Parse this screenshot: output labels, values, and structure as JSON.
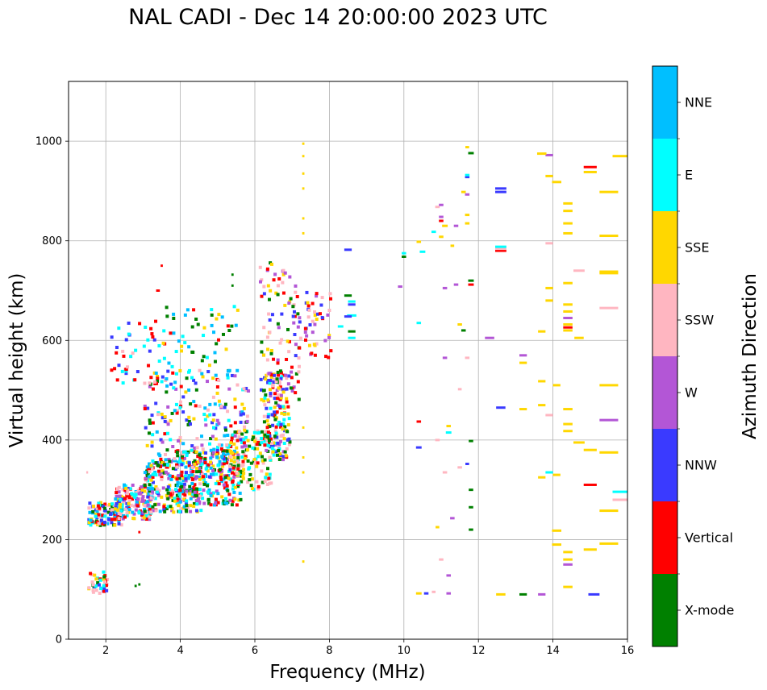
{
  "chart_data": {
    "type": "scatter",
    "title": "NAL CADI - Dec 14 20:00:00 2023 UTC",
    "xlabel": "Frequency (MHz)",
    "ylabel": "Virtual height (km)",
    "xlim": [
      1,
      16
    ],
    "ylim": [
      0,
      1120
    ],
    "xticks": [
      2,
      4,
      6,
      8,
      10,
      12,
      14,
      16
    ],
    "yticks": [
      0,
      200,
      400,
      600,
      800,
      1000
    ],
    "grid": true,
    "colorbar": {
      "label": "Azimuth Direction",
      "categories": [
        {
          "name": "X-mode",
          "color": "#008000"
        },
        {
          "name": "Vertical",
          "color": "#ff0000"
        },
        {
          "name": "NNW",
          "color": "#3a3aff"
        },
        {
          "name": "W",
          "color": "#b356d6"
        },
        {
          "name": "SSW",
          "color": "#ffb6c1"
        },
        {
          "name": "SSE",
          "color": "#ffd700"
        },
        {
          "name": "E",
          "color": "#00ffff"
        },
        {
          "name": "NNE",
          "color": "#00bfff"
        }
      ]
    },
    "segments": [
      {
        "f": 10.4,
        "h": 92,
        "w": 0.15,
        "c": "SSE"
      },
      {
        "f": 10.6,
        "h": 92,
        "w": 0.12,
        "c": "NNW"
      },
      {
        "f": 10.8,
        "h": 95,
        "w": 0.1,
        "c": "SSW"
      },
      {
        "f": 11.2,
        "h": 92,
        "w": 0.12,
        "c": "W"
      },
      {
        "f": 12.6,
        "h": 90,
        "w": 0.25,
        "c": "SSE"
      },
      {
        "f": 13.2,
        "h": 90,
        "w": 0.2,
        "c": "X-mode"
      },
      {
        "f": 13.7,
        "h": 90,
        "w": 0.2,
        "c": "W"
      },
      {
        "f": 15.1,
        "h": 90,
        "w": 0.3,
        "c": "NNW"
      },
      {
        "f": 10.9,
        "h": 225,
        "w": 0.1,
        "c": "SSE"
      },
      {
        "f": 11.0,
        "h": 160,
        "w": 0.12,
        "c": "SSW"
      },
      {
        "f": 11.2,
        "h": 128,
        "w": 0.12,
        "c": "W"
      },
      {
        "f": 11.8,
        "h": 220,
        "w": 0.12,
        "c": "X-mode"
      },
      {
        "f": 11.8,
        "h": 265,
        "w": 0.12,
        "c": "X-mode"
      },
      {
        "f": 11.8,
        "h": 300,
        "w": 0.12,
        "c": "X-mode"
      },
      {
        "f": 11.8,
        "h": 398,
        "w": 0.12,
        "c": "X-mode"
      },
      {
        "f": 11.7,
        "h": 352,
        "w": 0.1,
        "c": "NNW"
      },
      {
        "f": 11.5,
        "h": 345,
        "w": 0.12,
        "c": "SSW"
      },
      {
        "f": 11.1,
        "h": 335,
        "w": 0.12,
        "c": "SSW"
      },
      {
        "f": 11.3,
        "h": 243,
        "w": 0.12,
        "c": "W"
      },
      {
        "f": 10.4,
        "h": 385,
        "w": 0.15,
        "c": "NNW"
      },
      {
        "f": 10.4,
        "h": 437,
        "w": 0.12,
        "c": "Vertical"
      },
      {
        "f": 11.2,
        "h": 428,
        "w": 0.12,
        "c": "SSE"
      },
      {
        "f": 11.2,
        "h": 415,
        "w": 0.15,
        "c": "E"
      },
      {
        "f": 10.9,
        "h": 400,
        "w": 0.12,
        "c": "SSW"
      },
      {
        "f": 11.1,
        "h": 565,
        "w": 0.12,
        "c": "W"
      },
      {
        "f": 11.5,
        "h": 502,
        "w": 0.1,
        "c": "SSW"
      },
      {
        "f": 11.7,
        "h": 565,
        "w": 0.12,
        "c": "SSW"
      },
      {
        "f": 11.6,
        "h": 620,
        "w": 0.12,
        "c": "X-mode"
      },
      {
        "f": 11.5,
        "h": 632,
        "w": 0.12,
        "c": "SSE"
      },
      {
        "f": 10.4,
        "h": 635,
        "w": 0.12,
        "c": "E"
      },
      {
        "f": 9.9,
        "h": 708,
        "w": 0.12,
        "c": "W"
      },
      {
        "f": 11.1,
        "h": 705,
        "w": 0.12,
        "c": "W"
      },
      {
        "f": 11.4,
        "h": 712,
        "w": 0.12,
        "c": "W"
      },
      {
        "f": 11.8,
        "h": 712,
        "w": 0.15,
        "c": "Vertical"
      },
      {
        "f": 11.8,
        "h": 720,
        "w": 0.15,
        "c": "X-mode"
      },
      {
        "f": 10.0,
        "h": 768,
        "w": 0.12,
        "c": "X-mode"
      },
      {
        "f": 10.0,
        "h": 775,
        "w": 0.12,
        "c": "E"
      },
      {
        "f": 10.5,
        "h": 778,
        "w": 0.15,
        "c": "E"
      },
      {
        "f": 10.4,
        "h": 798,
        "w": 0.12,
        "c": "SSE"
      },
      {
        "f": 10.8,
        "h": 818,
        "w": 0.12,
        "c": "E"
      },
      {
        "f": 11.0,
        "h": 808,
        "w": 0.12,
        "c": "SSE"
      },
      {
        "f": 11.1,
        "h": 830,
        "w": 0.15,
        "c": "SSE"
      },
      {
        "f": 11.4,
        "h": 830,
        "w": 0.12,
        "c": "W"
      },
      {
        "f": 11.3,
        "h": 790,
        "w": 0.1,
        "c": "SSE"
      },
      {
        "f": 11.0,
        "h": 840,
        "w": 0.12,
        "c": "Vertical"
      },
      {
        "f": 11.0,
        "h": 848,
        "w": 0.12,
        "c": "W"
      },
      {
        "f": 10.9,
        "h": 868,
        "w": 0.12,
        "c": "SSW"
      },
      {
        "f": 11.0,
        "h": 872,
        "w": 0.12,
        "c": "W"
      },
      {
        "f": 11.6,
        "h": 898,
        "w": 0.12,
        "c": "SSE"
      },
      {
        "f": 11.7,
        "h": 893,
        "w": 0.12,
        "c": "W"
      },
      {
        "f": 11.7,
        "h": 928,
        "w": 0.12,
        "c": "NNW"
      },
      {
        "f": 11.7,
        "h": 932,
        "w": 0.12,
        "c": "E"
      },
      {
        "f": 11.7,
        "h": 852,
        "w": 0.12,
        "c": "SSE"
      },
      {
        "f": 11.7,
        "h": 835,
        "w": 0.12,
        "c": "SSE"
      },
      {
        "f": 11.7,
        "h": 988,
        "w": 0.1,
        "c": "SSE"
      },
      {
        "f": 11.8,
        "h": 976,
        "w": 0.15,
        "c": "X-mode"
      },
      {
        "f": 12.3,
        "h": 605,
        "w": 0.25,
        "c": "W"
      },
      {
        "f": 12.6,
        "h": 465,
        "w": 0.25,
        "c": "NNW"
      },
      {
        "f": 12.6,
        "h": 780,
        "w": 0.3,
        "c": "Vertical"
      },
      {
        "f": 12.6,
        "h": 784,
        "w": 0.3,
        "c": "SSW"
      },
      {
        "f": 12.6,
        "h": 788,
        "w": 0.3,
        "c": "E"
      },
      {
        "f": 12.6,
        "h": 898,
        "w": 0.3,
        "c": "NNW"
      },
      {
        "f": 12.6,
        "h": 905,
        "w": 0.3,
        "c": "NNW"
      },
      {
        "f": 13.2,
        "h": 570,
        "w": 0.2,
        "c": "W"
      },
      {
        "f": 13.2,
        "h": 555,
        "w": 0.2,
        "c": "SSE"
      },
      {
        "f": 13.2,
        "h": 462,
        "w": 0.2,
        "c": "SSE"
      },
      {
        "f": 13.7,
        "h": 618,
        "w": 0.2,
        "c": "SSE"
      },
      {
        "f": 13.7,
        "h": 518,
        "w": 0.2,
        "c": "SSE"
      },
      {
        "f": 13.7,
        "h": 470,
        "w": 0.2,
        "c": "SSE"
      },
      {
        "f": 13.9,
        "h": 450,
        "w": 0.2,
        "c": "SSW"
      },
      {
        "f": 13.7,
        "h": 325,
        "w": 0.2,
        "c": "SSE"
      },
      {
        "f": 13.9,
        "h": 335,
        "w": 0.2,
        "c": "E"
      },
      {
        "f": 14.1,
        "h": 330,
        "w": 0.2,
        "c": "SSE"
      },
      {
        "f": 14.1,
        "h": 510,
        "w": 0.2,
        "c": "SSE"
      },
      {
        "f": 13.9,
        "h": 680,
        "w": 0.2,
        "c": "SSE"
      },
      {
        "f": 13.9,
        "h": 705,
        "w": 0.2,
        "c": "SSE"
      },
      {
        "f": 13.9,
        "h": 795,
        "w": 0.2,
        "c": "SSW"
      },
      {
        "f": 13.9,
        "h": 930,
        "w": 0.2,
        "c": "SSE"
      },
      {
        "f": 13.9,
        "h": 972,
        "w": 0.2,
        "c": "W"
      },
      {
        "f": 13.7,
        "h": 975,
        "w": 0.25,
        "c": "SSE"
      },
      {
        "f": 14.1,
        "h": 918,
        "w": 0.25,
        "c": "SSE"
      },
      {
        "f": 14.4,
        "h": 875,
        "w": 0.25,
        "c": "SSE"
      },
      {
        "f": 14.4,
        "h": 860,
        "w": 0.25,
        "c": "SSE"
      },
      {
        "f": 14.4,
        "h": 835,
        "w": 0.25,
        "c": "SSE"
      },
      {
        "f": 14.4,
        "h": 815,
        "w": 0.25,
        "c": "SSE"
      },
      {
        "f": 14.4,
        "h": 715,
        "w": 0.25,
        "c": "SSE"
      },
      {
        "f": 14.4,
        "h": 672,
        "w": 0.25,
        "c": "SSE"
      },
      {
        "f": 14.4,
        "h": 658,
        "w": 0.25,
        "c": "SSE"
      },
      {
        "f": 14.4,
        "h": 645,
        "w": 0.25,
        "c": "W"
      },
      {
        "f": 14.4,
        "h": 632,
        "w": 0.25,
        "c": "SSE"
      },
      {
        "f": 14.4,
        "h": 626,
        "w": 0.25,
        "c": "Vertical"
      },
      {
        "f": 14.4,
        "h": 620,
        "w": 0.25,
        "c": "SSE"
      },
      {
        "f": 14.4,
        "h": 462,
        "w": 0.25,
        "c": "SSE"
      },
      {
        "f": 14.4,
        "h": 432,
        "w": 0.25,
        "c": "SSE"
      },
      {
        "f": 14.4,
        "h": 418,
        "w": 0.25,
        "c": "SSE"
      },
      {
        "f": 14.4,
        "h": 175,
        "w": 0.25,
        "c": "SSE"
      },
      {
        "f": 14.4,
        "h": 160,
        "w": 0.25,
        "c": "SSE"
      },
      {
        "f": 14.4,
        "h": 150,
        "w": 0.25,
        "c": "W"
      },
      {
        "f": 14.4,
        "h": 105,
        "w": 0.25,
        "c": "SSE"
      },
      {
        "f": 14.1,
        "h": 218,
        "w": 0.25,
        "c": "SSE"
      },
      {
        "f": 14.1,
        "h": 190,
        "w": 0.25,
        "c": "SSE"
      },
      {
        "f": 14.7,
        "h": 605,
        "w": 0.25,
        "c": "SSE"
      },
      {
        "f": 14.7,
        "h": 740,
        "w": 0.3,
        "c": "SSW"
      },
      {
        "f": 14.7,
        "h": 395,
        "w": 0.3,
        "c": "SSE"
      },
      {
        "f": 15.0,
        "h": 948,
        "w": 0.35,
        "c": "Vertical"
      },
      {
        "f": 15.0,
        "h": 938,
        "w": 0.35,
        "c": "SSE"
      },
      {
        "f": 15.0,
        "h": 380,
        "w": 0.35,
        "c": "SSE"
      },
      {
        "f": 15.0,
        "h": 310,
        "w": 0.35,
        "c": "Vertical"
      },
      {
        "f": 15.0,
        "h": 180,
        "w": 0.35,
        "c": "SSE"
      },
      {
        "f": 15.5,
        "h": 898,
        "w": 0.5,
        "c": "SSE"
      },
      {
        "f": 15.5,
        "h": 810,
        "w": 0.5,
        "c": "SSE"
      },
      {
        "f": 15.5,
        "h": 738,
        "w": 0.5,
        "c": "SSE"
      },
      {
        "f": 15.5,
        "h": 735,
        "w": 0.5,
        "c": "SSE"
      },
      {
        "f": 15.5,
        "h": 665,
        "w": 0.5,
        "c": "SSW"
      },
      {
        "f": 15.5,
        "h": 510,
        "w": 0.5,
        "c": "SSE"
      },
      {
        "f": 15.5,
        "h": 440,
        "w": 0.5,
        "c": "W"
      },
      {
        "f": 15.5,
        "h": 375,
        "w": 0.5,
        "c": "SSE"
      },
      {
        "f": 15.5,
        "h": 258,
        "w": 0.5,
        "c": "SSE"
      },
      {
        "f": 15.5,
        "h": 192,
        "w": 0.5,
        "c": "SSE"
      },
      {
        "f": 15.8,
        "h": 970,
        "w": 0.4,
        "c": "SSE"
      },
      {
        "f": 15.8,
        "h": 296,
        "w": 0.4,
        "c": "E"
      },
      {
        "f": 15.8,
        "h": 280,
        "w": 0.4,
        "c": "SSW"
      },
      {
        "f": 8.5,
        "h": 690,
        "w": 0.2,
        "c": "X-mode"
      },
      {
        "f": 8.6,
        "h": 678,
        "w": 0.2,
        "c": "E"
      },
      {
        "f": 8.6,
        "h": 672,
        "w": 0.2,
        "c": "NNW"
      },
      {
        "f": 8.6,
        "h": 650,
        "w": 0.25,
        "c": "E"
      },
      {
        "f": 8.5,
        "h": 648,
        "w": 0.2,
        "c": "NNW"
      },
      {
        "f": 8.6,
        "h": 618,
        "w": 0.2,
        "c": "X-mode"
      },
      {
        "f": 8.6,
        "h": 605,
        "w": 0.2,
        "c": "E"
      },
      {
        "f": 8.3,
        "h": 628,
        "w": 0.15,
        "c": "E"
      },
      {
        "f": 8.5,
        "h": 782,
        "w": 0.2,
        "c": "NNW"
      },
      {
        "f": 7.3,
        "h": 995,
        "w": 0.06,
        "c": "SSE"
      },
      {
        "f": 7.3,
        "h": 970,
        "w": 0.06,
        "c": "SSE"
      },
      {
        "f": 7.3,
        "h": 935,
        "w": 0.06,
        "c": "SSE"
      },
      {
        "f": 7.3,
        "h": 905,
        "w": 0.06,
        "c": "SSE"
      },
      {
        "f": 7.3,
        "h": 845,
        "w": 0.06,
        "c": "SSE"
      },
      {
        "f": 7.3,
        "h": 815,
        "w": 0.06,
        "c": "SSE"
      },
      {
        "f": 7.3,
        "h": 425,
        "w": 0.06,
        "c": "SSE"
      },
      {
        "f": 7.3,
        "h": 365,
        "w": 0.06,
        "c": "SSE"
      },
      {
        "f": 7.3,
        "h": 335,
        "w": 0.06,
        "c": "SSE"
      },
      {
        "f": 7.3,
        "h": 156,
        "w": 0.06,
        "c": "SSE"
      },
      {
        "f": 3.5,
        "h": 750,
        "w": 0.06,
        "c": "Vertical"
      },
      {
        "f": 3.4,
        "h": 700,
        "w": 0.1,
        "c": "Vertical"
      },
      {
        "f": 5.4,
        "h": 732,
        "w": 0.06,
        "c": "X-mode"
      },
      {
        "f": 5.4,
        "h": 710,
        "w": 0.06,
        "c": "X-mode"
      },
      {
        "f": 2.9,
        "h": 215,
        "w": 0.06,
        "c": "Vertical"
      },
      {
        "f": 2.9,
        "h": 110,
        "w": 0.06,
        "c": "X-mode"
      },
      {
        "f": 2.8,
        "h": 107,
        "w": 0.06,
        "c": "X-mode"
      },
      {
        "f": 1.5,
        "h": 335,
        "w": 0.05,
        "c": "SSW"
      }
    ],
    "trace_zones": [
      {
        "f0": 1.5,
        "f1": 2.0,
        "h0": 88,
        "h1": 135,
        "n": 40,
        "cols": [
          "Vertical",
          "SSE",
          "E",
          "NNW",
          "SSW",
          "X-mode"
        ]
      },
      {
        "f0": 1.5,
        "f1": 2.4,
        "h0": 228,
        "h1": 275,
        "n": 120,
        "cols": [
          "Vertical",
          "SSE",
          "SSW",
          "NNW",
          "X-mode",
          "E",
          "NNE"
        ]
      },
      {
        "f0": 2.2,
        "f1": 3.2,
        "h0": 240,
        "h1": 310,
        "n": 160,
        "cols": [
          "Vertical",
          "SSW",
          "NNW",
          "SSE",
          "E",
          "NNE",
          "W"
        ]
      },
      {
        "f0": 3.0,
        "f1": 4.6,
        "h0": 255,
        "h1": 360,
        "n": 240,
        "cols": [
          "Vertical",
          "X-mode",
          "NNE",
          "E",
          "NNW",
          "SSE",
          "W",
          "SSW"
        ]
      },
      {
        "f0": 3.8,
        "f1": 5.6,
        "h0": 268,
        "h1": 380,
        "n": 220,
        "cols": [
          "X-mode",
          "SSE",
          "E",
          "NNE",
          "Vertical",
          "W"
        ]
      },
      {
        "f0": 5.2,
        "f1": 6.4,
        "h0": 300,
        "h1": 420,
        "n": 140,
        "cols": [
          "X-mode",
          "SSE",
          "SSW",
          "Vertical",
          "E"
        ]
      },
      {
        "f0": 6.2,
        "f1": 6.9,
        "h0": 360,
        "h1": 540,
        "n": 160,
        "cols": [
          "SSE",
          "X-mode",
          "SSW",
          "Vertical",
          "W",
          "NNW",
          "E"
        ]
      },
      {
        "f0": 3.0,
        "f1": 5.8,
        "h0": 320,
        "h1": 540,
        "n": 260,
        "cols": [
          "E",
          "NNE",
          "Vertical",
          "X-mode",
          "SSE",
          "W",
          "SSW",
          "NNW"
        ]
      },
      {
        "f0": 2.1,
        "f1": 3.4,
        "h0": 510,
        "h1": 650,
        "n": 45,
        "cols": [
          "Vertical",
          "SSW",
          "NNW",
          "E"
        ]
      },
      {
        "f0": 3.5,
        "f1": 5.5,
        "h0": 520,
        "h1": 670,
        "n": 60,
        "cols": [
          "X-mode",
          "E",
          "NNE",
          "Vertical",
          "SSE"
        ]
      },
      {
        "f0": 6.1,
        "f1": 7.2,
        "h0": 480,
        "h1": 760,
        "n": 110,
        "cols": [
          "NNW",
          "W",
          "SSE",
          "SSW",
          "Vertical",
          "X-mode"
        ]
      },
      {
        "f0": 7.3,
        "f1": 8.0,
        "h0": 560,
        "h1": 700,
        "n": 45,
        "cols": [
          "W",
          "SSE",
          "NNW",
          "SSW",
          "Vertical"
        ]
      }
    ]
  }
}
